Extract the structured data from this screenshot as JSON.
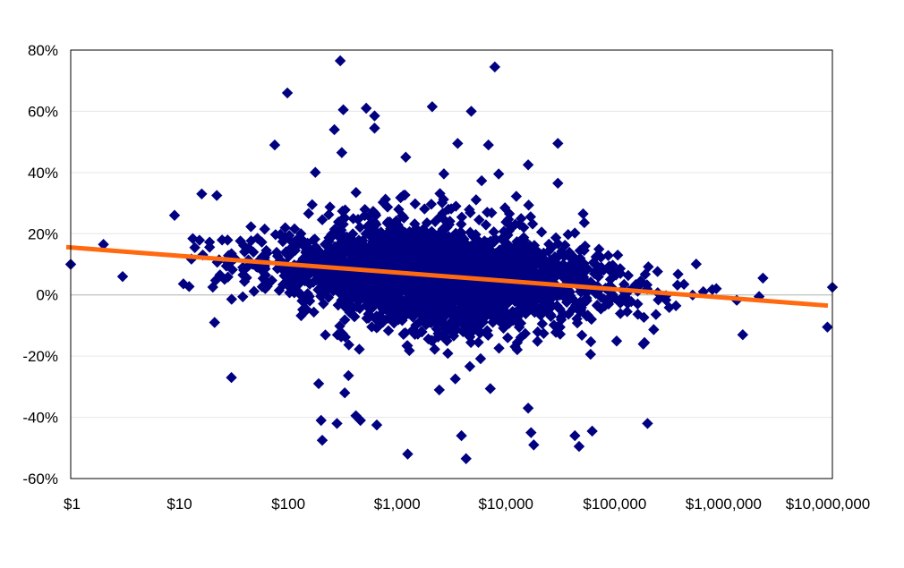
{
  "chart_data": {
    "type": "scatter",
    "title": "",
    "xlabel": "",
    "ylabel": "",
    "x_scale": "log",
    "xlim": [
      1,
      10000000
    ],
    "ylim": [
      -60,
      80
    ],
    "x_ticks": [
      {
        "value": 1,
        "label": "$1"
      },
      {
        "value": 10,
        "label": "$10"
      },
      {
        "value": 100,
        "label": "$100"
      },
      {
        "value": 1000,
        "label": "$1,000"
      },
      {
        "value": 10000,
        "label": "$10,000"
      },
      {
        "value": 100000,
        "label": "$100,000"
      },
      {
        "value": 1000000,
        "label": "$1,000,000"
      },
      {
        "value": 10000000,
        "label": "$10,000,000"
      }
    ],
    "y_ticks": [
      {
        "value": 80,
        "label": "80%"
      },
      {
        "value": 60,
        "label": "60%"
      },
      {
        "value": 40,
        "label": "40%"
      },
      {
        "value": 20,
        "label": "20%"
      },
      {
        "value": 0,
        "label": "0%"
      },
      {
        "value": -20,
        "label": "-20%"
      },
      {
        "value": -40,
        "label": "-40%"
      },
      {
        "value": -60,
        "label": "-60%"
      }
    ],
    "grid": {
      "horizontal": true,
      "vertical": false
    },
    "legend": "none",
    "colors": {
      "points": "#000080",
      "trend": "#ff6a10",
      "gridline": "#e6e6e6",
      "zero_line": "#b0b0b0",
      "frame": "#000000"
    },
    "trendline": {
      "x": [
        1,
        10000000
      ],
      "y": [
        15.5,
        -3.5
      ]
    },
    "cloud": {
      "note": "dense cluster of points",
      "center_trend": true,
      "x_range": [
        10,
        3000000
      ],
      "count": 2600,
      "seed": 12345
    },
    "outliers": [
      {
        "x": 1,
        "y": 10
      },
      {
        "x": 2,
        "y": 16.5
      },
      {
        "x": 3,
        "y": 6
      },
      {
        "x": 9,
        "y": 26
      },
      {
        "x": 16,
        "y": 33
      },
      {
        "x": 22,
        "y": 32.5
      },
      {
        "x": 21,
        "y": -9
      },
      {
        "x": 30,
        "y": -27
      },
      {
        "x": 75,
        "y": 49
      },
      {
        "x": 98,
        "y": 66
      },
      {
        "x": 190,
        "y": -29
      },
      {
        "x": 200,
        "y": -41
      },
      {
        "x": 205,
        "y": -47.5
      },
      {
        "x": 265,
        "y": 54
      },
      {
        "x": 280,
        "y": -42
      },
      {
        "x": 300,
        "y": 76.5
      },
      {
        "x": 320,
        "y": 60.5
      },
      {
        "x": 310,
        "y": 46.5
      },
      {
        "x": 330,
        "y": -32
      },
      {
        "x": 460,
        "y": -41
      },
      {
        "x": 520,
        "y": 61
      },
      {
        "x": 620,
        "y": 58.5
      },
      {
        "x": 620,
        "y": 54.5
      },
      {
        "x": 650,
        "y": -42.5
      },
      {
        "x": 1200,
        "y": 45
      },
      {
        "x": 1250,
        "y": -52
      },
      {
        "x": 2100,
        "y": 61.5
      },
      {
        "x": 3600,
        "y": 49.5
      },
      {
        "x": 3900,
        "y": -46
      },
      {
        "x": 4300,
        "y": -53.5
      },
      {
        "x": 4800,
        "y": 60
      },
      {
        "x": 7900,
        "y": 74.5
      },
      {
        "x": 6900,
        "y": 49
      },
      {
        "x": 16000,
        "y": 42.5
      },
      {
        "x": 30000,
        "y": 49.5
      },
      {
        "x": 30000,
        "y": 36.5
      },
      {
        "x": 16000,
        "y": -37
      },
      {
        "x": 17000,
        "y": -45
      },
      {
        "x": 18000,
        "y": -49
      },
      {
        "x": 43000,
        "y": -46
      },
      {
        "x": 47000,
        "y": -49.5
      },
      {
        "x": 62000,
        "y": -44.5
      },
      {
        "x": 200000,
        "y": -42
      },
      {
        "x": 9000000,
        "y": -10.5
      },
      {
        "x": 10000000,
        "y": 2.5
      },
      {
        "x": 2300000,
        "y": 5.5
      },
      {
        "x": 1500000,
        "y": -13
      }
    ]
  }
}
